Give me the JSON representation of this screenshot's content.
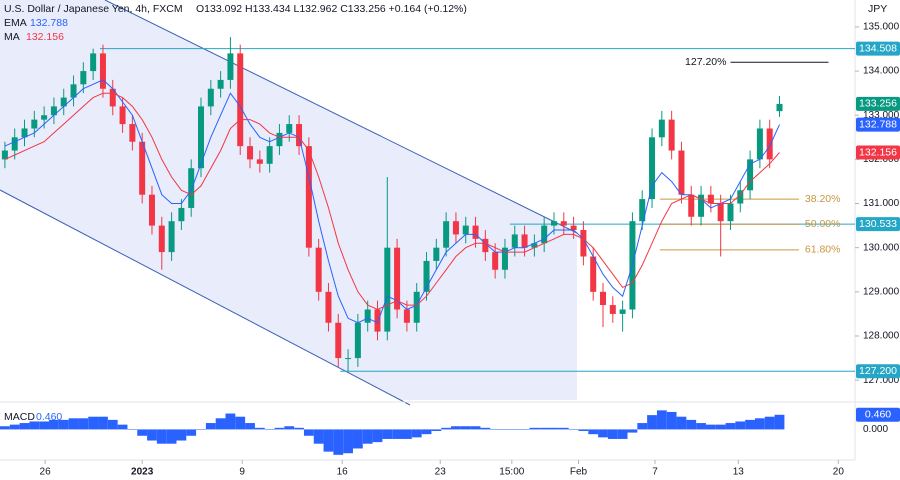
{
  "chart_data": {
    "type": "candlestick",
    "title": "U.S. Dollar / Japanese Yen, 4h, FXCM",
    "quote": "O133.092 H133.434 L132.962 C133.256 +0.164 (+0.12%)",
    "currency": "JPY",
    "xlim": [
      -0.5,
      86.7
    ],
    "xticks": [
      {
        "value": 4.1,
        "label": "26"
      },
      {
        "value": 14.0,
        "label": "2023"
      },
      {
        "value": 24.2,
        "label": "9"
      },
      {
        "value": 34.4,
        "label": "16"
      },
      {
        "value": 44.4,
        "label": "23"
      },
      {
        "value": 51.7,
        "label": "15:00"
      },
      {
        "value": 58.5,
        "label": "Feb"
      },
      {
        "value": 66.3,
        "label": "7"
      },
      {
        "value": 74.8,
        "label": "13"
      },
      {
        "value": 85.0,
        "label": "20"
      }
    ],
    "ylim": [
      126.55,
      135.61
    ],
    "yticks": [
      {
        "value": 127,
        "label": "127.000"
      },
      {
        "value": 128,
        "label": "128.000"
      },
      {
        "value": 129,
        "label": "129.000"
      },
      {
        "value": 130,
        "label": "130.000"
      },
      {
        "value": 131,
        "label": "131.000"
      },
      {
        "value": 132,
        "label": "132.000"
      },
      {
        "value": 133,
        "label": "133.000"
      },
      {
        "value": 134,
        "label": "134.000"
      },
      {
        "value": 135,
        "label": "135.000"
      }
    ],
    "up_color": "#089981",
    "down_color": "#f23645",
    "open": [
      132.0,
      132.2,
      132.5,
      132.7,
      132.9,
      133.0,
      133.2,
      133.4,
      133.7,
      134.0,
      134.4,
      133.6,
      133.2,
      132.8,
      132.4,
      131.2,
      130.5,
      129.9,
      130.6,
      130.9,
      131.8,
      133.2,
      133.6,
      133.8,
      134.4,
      132.3,
      132.0,
      131.9,
      132.3,
      132.6,
      132.8,
      132.3,
      130.0,
      129.0,
      128.3,
      127.5,
      127.5,
      128.3,
      128.6,
      128.1,
      130.0,
      128.6,
      128.3,
      129.0,
      129.7,
      130.0,
      130.6,
      130.3,
      130.5,
      130.2,
      129.9,
      129.5,
      130.0,
      130.3,
      130.0,
      130.1,
      130.5,
      130.6,
      130.5,
      130.4,
      129.8,
      129.0,
      128.7,
      128.5,
      128.6,
      130.6,
      131.1,
      132.5,
      132.9,
      132.2,
      131.2,
      130.7,
      131.2,
      131.0,
      130.6,
      131.0,
      131.3,
      132.0,
      132.7,
      133.092
    ],
    "high": [
      132.4,
      132.7,
      132.9,
      133.1,
      133.2,
      133.4,
      133.6,
      133.9,
      134.2,
      134.508,
      134.6,
      133.8,
      133.4,
      133.0,
      132.6,
      131.4,
      130.7,
      130.8,
      131.1,
      132.0,
      133.4,
      133.8,
      134.0,
      134.77,
      134.6,
      132.5,
      132.2,
      132.5,
      132.8,
      133.0,
      133.0,
      132.5,
      130.2,
      129.2,
      128.5,
      127.7,
      128.5,
      128.8,
      128.8,
      131.6,
      130.2,
      128.8,
      129.2,
      129.9,
      130.2,
      130.8,
      130.8,
      130.7,
      130.7,
      130.4,
      130.1,
      130.2,
      130.5,
      130.5,
      130.3,
      130.7,
      130.8,
      130.8,
      130.7,
      130.6,
      130.0,
      129.2,
      128.9,
      128.8,
      130.8,
      131.3,
      132.7,
      133.1,
      133.1,
      132.4,
      131.4,
      131.4,
      131.4,
      131.2,
      131.2,
      131.5,
      132.2,
      132.9,
      132.9,
      133.434
    ],
    "low": [
      131.8,
      132.0,
      132.3,
      132.5,
      132.7,
      132.8,
      133.0,
      133.2,
      133.5,
      133.8,
      133.4,
      133.0,
      132.6,
      132.2,
      131.0,
      130.3,
      129.5,
      129.7,
      130.4,
      130.7,
      131.6,
      133.0,
      133.4,
      133.6,
      132.1,
      131.8,
      131.7,
      131.7,
      132.1,
      132.4,
      132.1,
      129.8,
      128.8,
      128.1,
      127.3,
      127.2,
      127.3,
      128.1,
      127.9,
      127.9,
      128.4,
      128.1,
      128.1,
      128.8,
      129.5,
      129.8,
      130.1,
      130.1,
      130.0,
      129.7,
      129.3,
      129.3,
      129.8,
      129.8,
      129.8,
      129.9,
      130.3,
      130.3,
      130.2,
      129.6,
      128.8,
      128.2,
      128.3,
      128.1,
      128.4,
      130.4,
      130.9,
      132.3,
      132.0,
      131.0,
      130.5,
      130.5,
      130.8,
      129.8,
      130.4,
      130.8,
      131.1,
      131.8,
      131.8,
      132.962
    ],
    "close": [
      132.2,
      132.5,
      132.7,
      132.9,
      133.0,
      133.2,
      133.4,
      133.7,
      134.0,
      134.4,
      133.6,
      133.2,
      132.8,
      132.4,
      131.2,
      130.5,
      129.9,
      130.6,
      130.9,
      131.8,
      133.2,
      133.6,
      133.8,
      134.4,
      132.3,
      132.0,
      131.9,
      132.3,
      132.6,
      132.8,
      132.3,
      130.0,
      129.0,
      128.3,
      127.5,
      127.5,
      128.3,
      128.6,
      128.1,
      130.0,
      128.6,
      128.3,
      129.0,
      129.7,
      130.0,
      130.6,
      130.3,
      130.5,
      130.2,
      129.9,
      129.5,
      130.0,
      130.3,
      130.0,
      130.1,
      130.5,
      130.6,
      130.5,
      130.4,
      129.8,
      129.0,
      128.7,
      128.5,
      128.6,
      130.6,
      131.1,
      132.5,
      132.9,
      132.2,
      131.2,
      130.7,
      131.2,
      131.0,
      130.6,
      131.0,
      131.3,
      132.0,
      132.7,
      132.0,
      133.256
    ],
    "series": [
      {
        "name": "EMA",
        "color": "#2962ff",
        "values": [
          132.3,
          132.4,
          132.5,
          132.6,
          132.8,
          133.0,
          133.2,
          133.4,
          133.6,
          133.7,
          133.8,
          133.6,
          133.3,
          133.0,
          132.4,
          131.8,
          131.2,
          131.0,
          131.0,
          131.3,
          131.9,
          132.5,
          133.0,
          133.5,
          133.2,
          132.8,
          132.5,
          132.4,
          132.5,
          132.6,
          132.5,
          131.6,
          130.6,
          129.7,
          128.9,
          128.4,
          128.3,
          128.4,
          128.3,
          128.9,
          128.8,
          128.6,
          128.7,
          129.1,
          129.5,
          129.9,
          130.1,
          130.3,
          130.3,
          130.1,
          129.9,
          129.9,
          130.0,
          130.0,
          130.1,
          130.2,
          130.4,
          130.4,
          130.4,
          130.2,
          129.8,
          129.4,
          129.1,
          128.9,
          129.6,
          130.5,
          131.4,
          131.7,
          131.5,
          131.2,
          131.2,
          131.1,
          130.9,
          131.0,
          131.1,
          131.5,
          131.9,
          132.0,
          132.3,
          132.788
        ]
      },
      {
        "name": "MA",
        "color": "#f23645",
        "values": [
          132.0,
          132.1,
          132.2,
          132.3,
          132.4,
          132.6,
          132.8,
          133.0,
          133.2,
          133.4,
          133.5,
          133.5,
          133.4,
          133.2,
          132.9,
          132.5,
          132.0,
          131.6,
          131.3,
          131.2,
          131.4,
          131.8,
          132.2,
          132.7,
          132.9,
          132.9,
          132.8,
          132.6,
          132.5,
          132.5,
          132.5,
          132.2,
          131.6,
          130.9,
          130.1,
          129.5,
          129.0,
          128.7,
          128.6,
          128.7,
          128.8,
          128.7,
          128.7,
          128.9,
          129.2,
          129.5,
          129.8,
          130.0,
          130.1,
          130.1,
          130.0,
          129.9,
          129.9,
          129.9,
          130.0,
          130.1,
          130.2,
          130.3,
          130.3,
          130.2,
          130.0,
          129.7,
          129.4,
          129.1,
          129.2,
          129.6,
          130.1,
          130.6,
          131.0,
          131.1,
          131.2,
          131.1,
          131.0,
          131.0,
          131.0,
          131.2,
          131.5,
          131.7,
          131.9,
          132.156
        ]
      }
    ],
    "levels": [
      {
        "value": 134.508,
        "label": "134.508",
        "start": 9.7
      },
      {
        "value": 130.533,
        "label": "130.533",
        "start": 51.5
      },
      {
        "value": 127.2,
        "label": "127.200",
        "start": 34.2
      }
    ],
    "level_color": "#26a6c6",
    "fib_levels": [
      {
        "name": "127.20%",
        "price": 134.2,
        "start": 74.0,
        "end": 84.0,
        "color": "#131722"
      },
      {
        "name": "38.20%",
        "price": 131.1,
        "start": 66.8,
        "end": 81.0,
        "color": "#c8963e"
      },
      {
        "name": "50.00%",
        "price": 130.53,
        "start": 66.8,
        "end": 81.0,
        "color": "#c8963e"
      },
      {
        "name": "61.80%",
        "price": 129.95,
        "start": 66.8,
        "end": 81.0,
        "color": "#c8963e"
      }
    ],
    "macd": {
      "name": "MACD",
      "color": "#2962ff",
      "ylim": [
        -0.9,
        0.8
      ],
      "yticks": [
        {
          "value": 0,
          "label": "0.000"
        }
      ],
      "current": {
        "value": 0.46,
        "label": "0.460"
      },
      "values": [
        0.1,
        0.15,
        0.2,
        0.25,
        0.25,
        0.3,
        0.3,
        0.35,
        0.35,
        0.4,
        0.4,
        0.3,
        0.15,
        0.0,
        -0.2,
        -0.35,
        -0.45,
        -0.45,
        -0.35,
        -0.2,
        0.0,
        0.2,
        0.35,
        0.5,
        0.4,
        0.2,
        0.05,
        0.0,
        0.05,
        0.1,
        0.05,
        -0.2,
        -0.45,
        -0.7,
        -0.8,
        -0.75,
        -0.6,
        -0.45,
        -0.4,
        -0.3,
        -0.3,
        -0.3,
        -0.25,
        -0.15,
        -0.05,
        0.05,
        0.1,
        0.1,
        0.1,
        0.05,
        0.0,
        0.0,
        0.0,
        0.0,
        0.05,
        0.05,
        0.05,
        0.05,
        0.0,
        -0.05,
        -0.15,
        -0.25,
        -0.3,
        -0.3,
        -0.1,
        0.2,
        0.45,
        0.6,
        0.55,
        0.4,
        0.3,
        0.2,
        0.15,
        0.15,
        0.2,
        0.25,
        0.3,
        0.35,
        0.4,
        0.46
      ]
    }
  }
}
